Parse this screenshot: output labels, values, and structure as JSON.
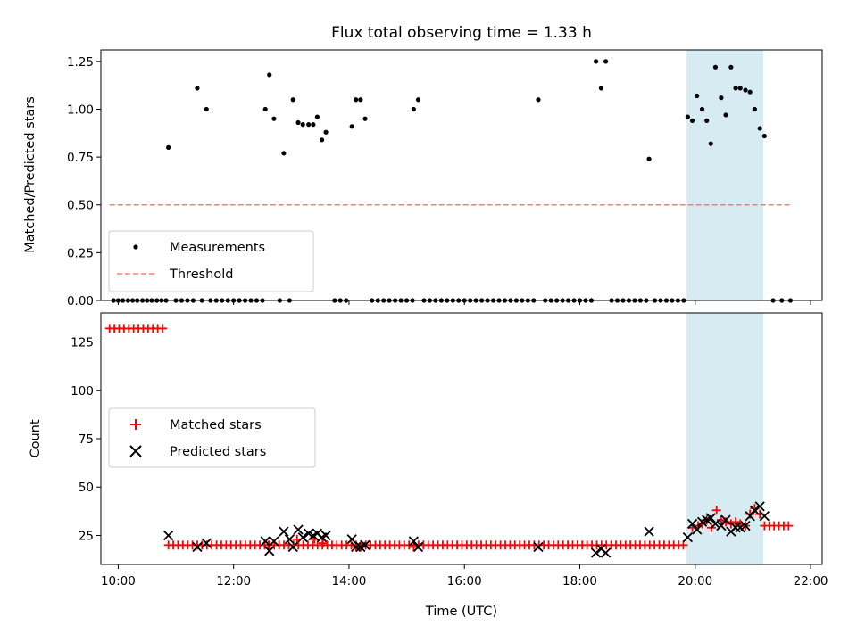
{
  "chart_data": [
    {
      "type": "scatter",
      "title": "Flux total observing time = 1.33 h",
      "xlabel": "",
      "ylabel": "Matched/Predicted stars",
      "xlim": [
        9.7,
        22.2
      ],
      "ylim": [
        0,
        1.31
      ],
      "yticks": [
        0,
        0.25,
        0.5,
        0.75,
        1.0,
        1.25
      ],
      "ytick_labels": [
        "0.00",
        "0.25",
        "0.50",
        "0.75",
        "1.00",
        "1.25"
      ],
      "xticks": [
        10,
        12,
        14,
        16,
        18,
        20,
        22
      ],
      "highlight_span": [
        19.85,
        21.18
      ],
      "grid": false,
      "legend_position": "lower-left",
      "series": [
        {
          "name": "Measurements",
          "kind": "points",
          "color": "#000000",
          "points": [
            [
              9.92,
              0
            ],
            [
              10.0,
              0
            ],
            [
              10.08,
              0
            ],
            [
              10.17,
              0
            ],
            [
              10.25,
              0
            ],
            [
              10.33,
              0
            ],
            [
              10.42,
              0
            ],
            [
              10.5,
              0
            ],
            [
              10.58,
              0
            ],
            [
              10.67,
              0
            ],
            [
              10.75,
              0
            ],
            [
              10.83,
              0
            ],
            [
              10.87,
              0.8
            ],
            [
              11.0,
              0
            ],
            [
              11.1,
              0
            ],
            [
              11.2,
              0
            ],
            [
              11.3,
              0
            ],
            [
              11.37,
              1.11
            ],
            [
              11.45,
              0
            ],
            [
              11.53,
              1.0
            ],
            [
              11.6,
              0
            ],
            [
              11.7,
              0
            ],
            [
              11.8,
              0
            ],
            [
              11.9,
              0
            ],
            [
              12.0,
              0
            ],
            [
              12.1,
              0
            ],
            [
              12.2,
              0
            ],
            [
              12.3,
              0
            ],
            [
              12.4,
              0
            ],
            [
              12.5,
              0
            ],
            [
              12.55,
              1.0
            ],
            [
              12.62,
              1.18
            ],
            [
              12.7,
              0.95
            ],
            [
              12.8,
              0
            ],
            [
              12.87,
              0.77
            ],
            [
              12.97,
              0
            ],
            [
              13.03,
              1.05
            ],
            [
              13.12,
              0.93
            ],
            [
              13.2,
              0.92
            ],
            [
              13.3,
              0.92
            ],
            [
              13.38,
              0.92
            ],
            [
              13.45,
              0.96
            ],
            [
              13.53,
              0.84
            ],
            [
              13.6,
              0.88
            ],
            [
              13.75,
              0
            ],
            [
              13.85,
              0
            ],
            [
              13.95,
              0
            ],
            [
              14.05,
              0.91
            ],
            [
              14.12,
              1.05
            ],
            [
              14.2,
              1.05
            ],
            [
              14.28,
              0.95
            ],
            [
              14.4,
              0
            ],
            [
              14.5,
              0
            ],
            [
              14.6,
              0
            ],
            [
              14.7,
              0
            ],
            [
              14.8,
              0
            ],
            [
              14.9,
              0
            ],
            [
              15.0,
              0
            ],
            [
              15.1,
              0
            ],
            [
              15.12,
              1.0
            ],
            [
              15.2,
              1.05
            ],
            [
              15.3,
              0
            ],
            [
              15.4,
              0
            ],
            [
              15.5,
              0
            ],
            [
              15.6,
              0
            ],
            [
              15.7,
              0
            ],
            [
              15.8,
              0
            ],
            [
              15.9,
              0
            ],
            [
              16.0,
              0
            ],
            [
              16.1,
              0
            ],
            [
              16.2,
              0
            ],
            [
              16.3,
              0
            ],
            [
              16.4,
              0
            ],
            [
              16.5,
              0
            ],
            [
              16.6,
              0
            ],
            [
              16.7,
              0
            ],
            [
              16.8,
              0
            ],
            [
              16.9,
              0
            ],
            [
              17.0,
              0
            ],
            [
              17.1,
              0
            ],
            [
              17.2,
              0
            ],
            [
              17.28,
              1.05
            ],
            [
              17.4,
              0
            ],
            [
              17.5,
              0
            ],
            [
              17.6,
              0
            ],
            [
              17.7,
              0
            ],
            [
              17.8,
              0
            ],
            [
              17.9,
              0
            ],
            [
              18.0,
              0
            ],
            [
              18.1,
              0
            ],
            [
              18.2,
              0
            ],
            [
              18.28,
              1.25
            ],
            [
              18.37,
              1.11
            ],
            [
              18.45,
              1.25
            ],
            [
              18.55,
              0
            ],
            [
              18.65,
              0
            ],
            [
              18.75,
              0
            ],
            [
              18.85,
              0
            ],
            [
              18.95,
              0
            ],
            [
              19.05,
              0
            ],
            [
              19.15,
              0
            ],
            [
              19.2,
              0.74
            ],
            [
              19.3,
              0
            ],
            [
              19.4,
              0
            ],
            [
              19.5,
              0
            ],
            [
              19.6,
              0
            ],
            [
              19.7,
              0
            ],
            [
              19.8,
              0
            ],
            [
              19.87,
              0.96
            ],
            [
              19.95,
              0.94
            ],
            [
              20.03,
              1.07
            ],
            [
              20.12,
              1.0
            ],
            [
              20.2,
              0.94
            ],
            [
              20.27,
              0.82
            ],
            [
              20.35,
              1.22
            ],
            [
              20.45,
              1.06
            ],
            [
              20.53,
              0.97
            ],
            [
              20.62,
              1.22
            ],
            [
              20.7,
              1.11
            ],
            [
              20.78,
              1.11
            ],
            [
              20.87,
              1.1
            ],
            [
              20.95,
              1.09
            ],
            [
              21.03,
              1.0
            ],
            [
              21.12,
              0.9
            ],
            [
              21.2,
              0.86
            ],
            [
              21.35,
              0
            ],
            [
              21.5,
              0
            ],
            [
              21.65,
              0
            ]
          ]
        },
        {
          "name": "Threshold",
          "kind": "dashed-line",
          "color": "#ff7b7b",
          "x": [
            9.85,
            21.65
          ],
          "y": [
            0.5,
            0.5
          ]
        }
      ]
    },
    {
      "type": "scatter",
      "title": "",
      "xlabel": "Time (UTC)",
      "ylabel": "Count",
      "xlim": [
        9.7,
        22.2
      ],
      "ylim": [
        10,
        140
      ],
      "yticks": [
        25,
        50,
        75,
        100,
        125
      ],
      "ytick_labels": [
        "25",
        "50",
        "75",
        "100",
        "125"
      ],
      "xticks": [
        10,
        12,
        14,
        16,
        18,
        20,
        22
      ],
      "xtick_labels": [
        "10:00",
        "12:00",
        "14:00",
        "16:00",
        "18:00",
        "20:00",
        "22:00"
      ],
      "highlight_span": [
        19.85,
        21.18
      ],
      "grid": false,
      "legend_position": "center-left",
      "series": [
        {
          "name": "Matched stars",
          "marker": "plus",
          "color": "#ff0000",
          "segments": [
            {
              "x_start": 9.85,
              "x_end": 10.83,
              "step": 0.0834,
              "y": 132
            },
            {
              "x_start": 10.87,
              "x_end": 19.85,
              "step": 0.0834,
              "y": 20
            },
            {
              "x_start": 21.2,
              "x_end": 21.7,
              "step": 0.0834,
              "y": 30
            }
          ],
          "points": [
            [
              12.6,
              20
            ],
            [
              13.1,
              23
            ],
            [
              13.4,
              23
            ],
            [
              13.55,
              21
            ],
            [
              14.12,
              19
            ],
            [
              14.2,
              19
            ],
            [
              15.12,
              19
            ],
            [
              19.95,
              29
            ],
            [
              20.05,
              30
            ],
            [
              20.12,
              31
            ],
            [
              20.2,
              33
            ],
            [
              20.28,
              29
            ],
            [
              20.37,
              38
            ],
            [
              20.45,
              33
            ],
            [
              20.53,
              32
            ],
            [
              20.62,
              31
            ],
            [
              20.7,
              32
            ],
            [
              20.78,
              31
            ],
            [
              20.87,
              30
            ],
            [
              20.95,
              36
            ],
            [
              21.03,
              39
            ],
            [
              21.12,
              36
            ]
          ]
        },
        {
          "name": "Predicted stars",
          "marker": "x",
          "color": "#000000",
          "points": [
            [
              10.87,
              25
            ],
            [
              11.37,
              19
            ],
            [
              11.53,
              21
            ],
            [
              12.55,
              22
            ],
            [
              12.62,
              17
            ],
            [
              12.7,
              22
            ],
            [
              12.87,
              27
            ],
            [
              12.97,
              23
            ],
            [
              13.03,
              19
            ],
            [
              13.12,
              28
            ],
            [
              13.2,
              24
            ],
            [
              13.3,
              26
            ],
            [
              13.38,
              25
            ],
            [
              13.45,
              26
            ],
            [
              13.53,
              24
            ],
            [
              13.6,
              25
            ],
            [
              14.05,
              23
            ],
            [
              14.12,
              19
            ],
            [
              14.2,
              19
            ],
            [
              14.28,
              20
            ],
            [
              15.12,
              22
            ],
            [
              15.2,
              19
            ],
            [
              17.28,
              19
            ],
            [
              18.28,
              16
            ],
            [
              18.37,
              18
            ],
            [
              18.45,
              16
            ],
            [
              19.2,
              27
            ],
            [
              19.87,
              24
            ],
            [
              19.95,
              31
            ],
            [
              20.03,
              28
            ],
            [
              20.12,
              32
            ],
            [
              20.2,
              33
            ],
            [
              20.27,
              34
            ],
            [
              20.35,
              31
            ],
            [
              20.45,
              30
            ],
            [
              20.53,
              33
            ],
            [
              20.62,
              27
            ],
            [
              20.7,
              29
            ],
            [
              20.78,
              29
            ],
            [
              20.87,
              30
            ],
            [
              20.95,
              35
            ],
            [
              21.03,
              38
            ],
            [
              21.12,
              40
            ],
            [
              21.2,
              35
            ]
          ]
        }
      ]
    }
  ]
}
